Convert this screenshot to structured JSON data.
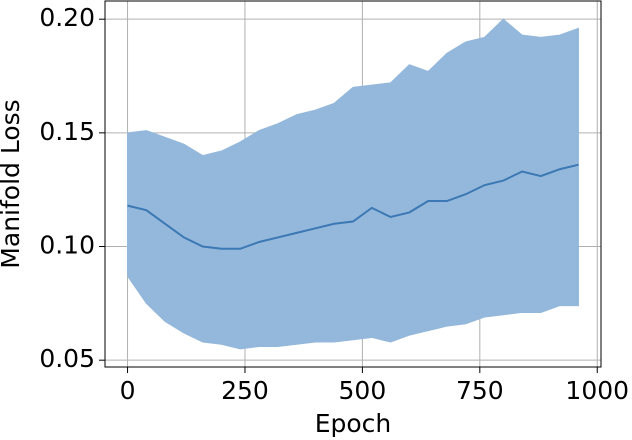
{
  "chart_data": {
    "type": "band-line",
    "x_label": "Epoch",
    "y_label": "Manifold Loss",
    "x": [
      0,
      40,
      80,
      120,
      160,
      200,
      240,
      280,
      320,
      360,
      400,
      440,
      480,
      520,
      560,
      600,
      640,
      680,
      720,
      760,
      800,
      840,
      880,
      920,
      960
    ],
    "values": [
      0.118,
      0.116,
      0.11,
      0.104,
      0.1,
      0.099,
      0.099,
      0.102,
      0.104,
      0.106,
      0.108,
      0.11,
      0.111,
      0.117,
      0.113,
      0.115,
      0.12,
      0.12,
      0.123,
      0.127,
      0.129,
      0.133,
      0.131,
      0.134,
      0.136
    ],
    "upper": [
      0.15,
      0.151,
      0.148,
      0.145,
      0.14,
      0.142,
      0.146,
      0.151,
      0.154,
      0.158,
      0.16,
      0.163,
      0.17,
      0.171,
      0.172,
      0.18,
      0.177,
      0.185,
      0.19,
      0.192,
      0.2,
      0.193,
      0.192,
      0.193,
      0.196
    ],
    "lower": [
      0.087,
      0.075,
      0.067,
      0.062,
      0.058,
      0.057,
      0.055,
      0.056,
      0.056,
      0.057,
      0.058,
      0.058,
      0.059,
      0.06,
      0.058,
      0.061,
      0.063,
      0.065,
      0.066,
      0.069,
      0.07,
      0.071,
      0.071,
      0.074,
      0.074
    ],
    "color": "#3b78b4",
    "band_color": "#94b8db",
    "xlim": [
      -48,
      1008
    ],
    "ylim": [
      0.047,
      0.208
    ],
    "xticks": [
      0,
      250,
      500,
      750,
      1000
    ],
    "yticks": [
      0.05,
      {
        "value": 0.1,
        "label": "0.10"
      },
      0.15,
      {
        "value": 0.2,
        "label": "0.20"
      }
    ],
    "grid": true
  }
}
